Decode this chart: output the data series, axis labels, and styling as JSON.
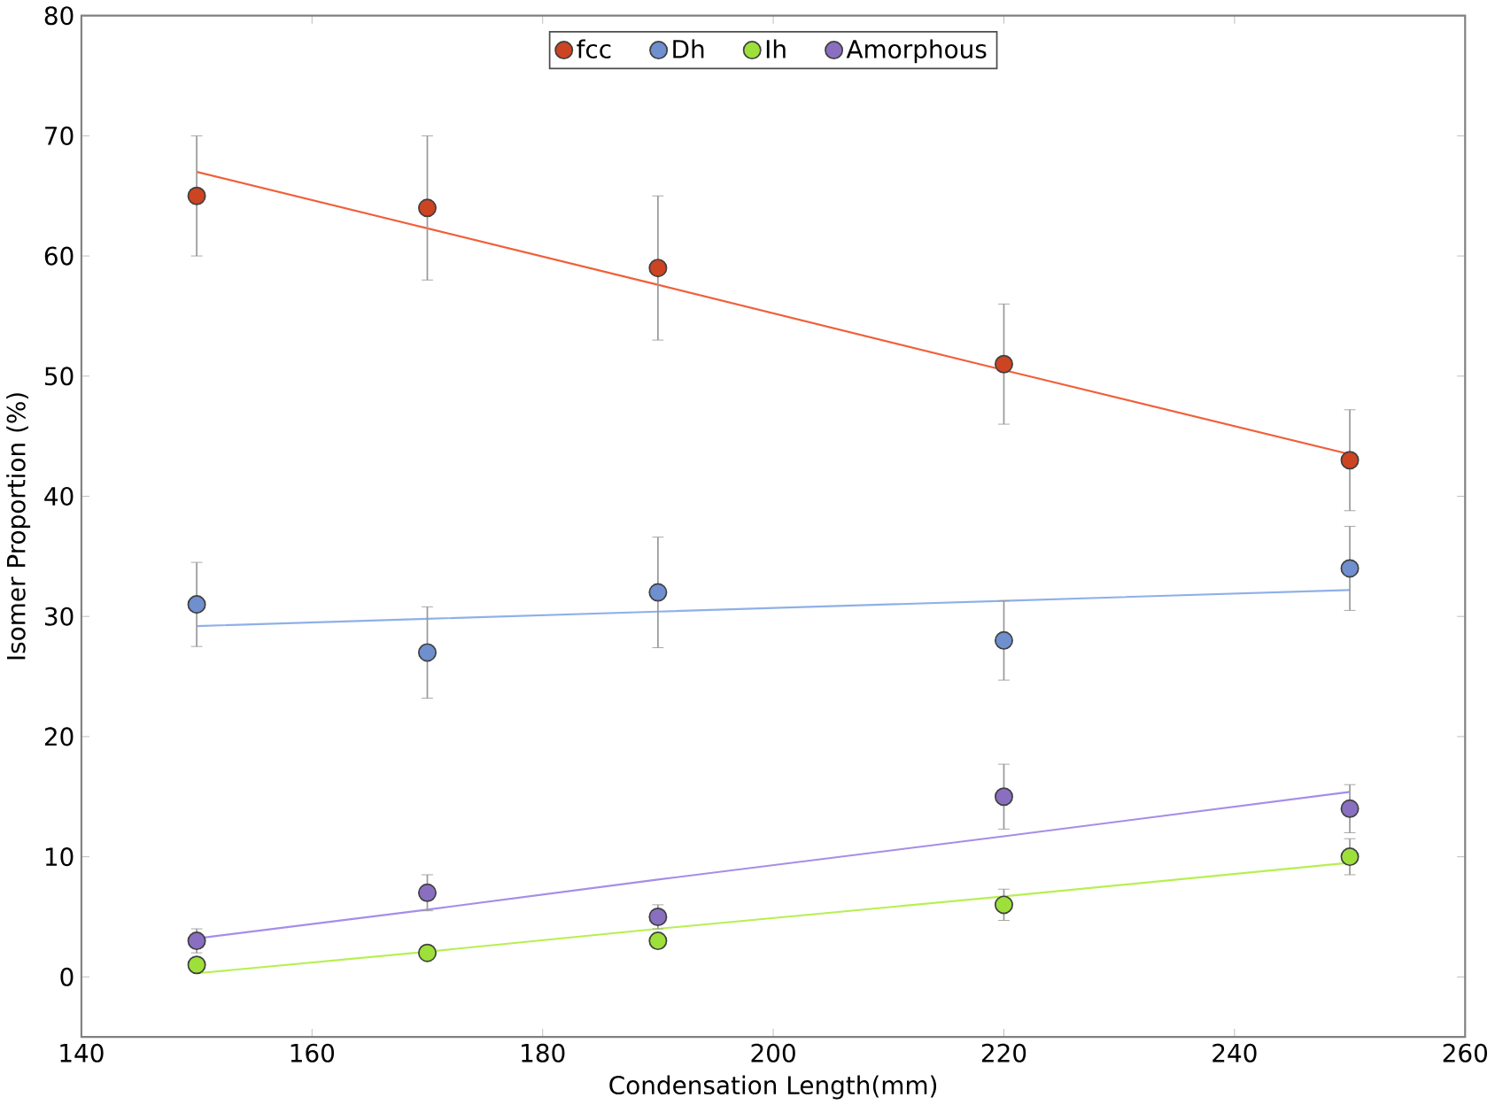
{
  "chart_data": {
    "type": "scatter",
    "xlabel": "Condensation Length(mm)",
    "ylabel": "Isomer Proportion (%)",
    "xlim": [
      140,
      260
    ],
    "ylim": [
      -5,
      80
    ],
    "xticks": [
      140,
      160,
      180,
      200,
      220,
      240,
      260
    ],
    "yticks": [
      0,
      10,
      20,
      30,
      40,
      50,
      60,
      70,
      80
    ],
    "x": [
      150,
      170,
      190,
      220,
      250
    ],
    "grid": false,
    "legend": "top",
    "series": [
      {
        "name": "fcc",
        "marker": "circle",
        "color": "#cc4422",
        "values": [
          65,
          64,
          59,
          51,
          43
        ],
        "errors": [
          5,
          6,
          6,
          5,
          4.2
        ]
      },
      {
        "name": "Dh",
        "marker": "circle",
        "color": "#6f8fcf",
        "values": [
          31,
          27,
          32,
          28,
          34
        ],
        "errors": [
          3.5,
          3.8,
          4.6,
          3.3,
          3.5
        ]
      },
      {
        "name": "Ih",
        "marker": "circle",
        "color": "#9de03a",
        "values": [
          1,
          2,
          3,
          6,
          10
        ],
        "errors": [
          0.5,
          0.5,
          0.6,
          1.3,
          1.5
        ]
      },
      {
        "name": "Amorphous",
        "marker": "circle",
        "color": "#8a6fc0",
        "values": [
          3,
          7,
          5,
          15,
          14
        ],
        "errors": [
          1,
          1.5,
          1,
          2.7,
          2
        ]
      },
      {
        "type": "line",
        "marker": "none",
        "color": "#f0603a",
        "values": [
          67,
          62.3,
          57.6,
          50.5,
          43.5
        ]
      },
      {
        "type": "line",
        "marker": "none",
        "color": "#8fb0e8",
        "values": [
          29.2,
          29.8,
          30.4,
          31.3,
          32.2
        ]
      },
      {
        "type": "line",
        "marker": "none",
        "color": "#b6f050",
        "values": [
          0.3,
          2.1,
          4.0,
          6.7,
          9.5
        ]
      },
      {
        "type": "line",
        "marker": "none",
        "color": "#a58ee8",
        "values": [
          3.2,
          5.6,
          8.1,
          11.7,
          15.4
        ]
      }
    ]
  }
}
